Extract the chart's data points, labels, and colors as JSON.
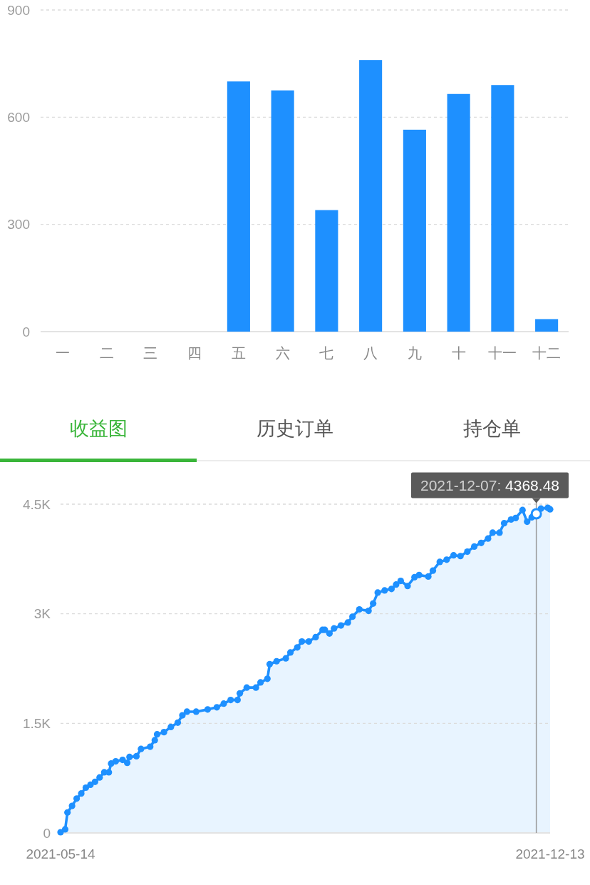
{
  "chart_data": [
    {
      "type": "bar",
      "categories": [
        "一",
        "二",
        "三",
        "四",
        "五",
        "六",
        "七",
        "八",
        "九",
        "十",
        "十一",
        "十二"
      ],
      "values": [
        null,
        null,
        null,
        null,
        700,
        675,
        340,
        760,
        565,
        665,
        690,
        35
      ],
      "color": "#1e90ff",
      "ylim": [
        0,
        900
      ],
      "yticks": [
        0,
        300,
        600,
        900
      ],
      "grid": "y"
    },
    {
      "type": "other",
      "annotations": [
        "收益图",
        "历史订单",
        "持仓单"
      ]
    },
    {
      "type": "area",
      "color": "#1e90ff",
      "marker": "circle",
      "grid": "y",
      "x": [
        "2021-05-14",
        "2021-05-16",
        "2021-05-17",
        "2021-05-19",
        "2021-05-21",
        "2021-05-23",
        "2021-05-25",
        "2021-05-27",
        "2021-05-29",
        "2021-05-31",
        "2021-06-02",
        "2021-06-04",
        "2021-06-05",
        "2021-06-07",
        "2021-06-10",
        "2021-06-12",
        "2021-06-13",
        "2021-06-16",
        "2021-06-18",
        "2021-06-22",
        "2021-06-24",
        "2021-06-25",
        "2021-06-28",
        "2021-07-01",
        "2021-07-04",
        "2021-07-06",
        "2021-07-08",
        "2021-07-12",
        "2021-07-17",
        "2021-07-21",
        "2021-07-24",
        "2021-07-27",
        "2021-07-30",
        "2021-07-31",
        "2021-08-03",
        "2021-08-07",
        "2021-08-09",
        "2021-08-12",
        "2021-08-13",
        "2021-08-16",
        "2021-08-20",
        "2021-08-22",
        "2021-08-25",
        "2021-08-27",
        "2021-08-30",
        "2021-09-02",
        "2021-09-05",
        "2021-09-06",
        "2021-09-08",
        "2021-09-10",
        "2021-09-13",
        "2021-09-16",
        "2021-09-18",
        "2021-09-21",
        "2021-09-25",
        "2021-09-27",
        "2021-09-29",
        "2021-10-02",
        "2021-10-05",
        "2021-10-07",
        "2021-10-09",
        "2021-10-12",
        "2021-10-15",
        "2021-10-17",
        "2021-10-21",
        "2021-10-23",
        "2021-10-26",
        "2021-10-29",
        "2021-11-01",
        "2021-11-04",
        "2021-11-07",
        "2021-11-10",
        "2021-11-13",
        "2021-11-16",
        "2021-11-18",
        "2021-11-21",
        "2021-11-23",
        "2021-11-26",
        "2021-11-28",
        "2021-12-01",
        "2021-12-03",
        "2021-12-05",
        "2021-12-07",
        "2021-12-09",
        "2021-12-12",
        "2021-12-13"
      ],
      "values": [
        10,
        50,
        280,
        370,
        470,
        540,
        620,
        660,
        700,
        760,
        830,
        830,
        950,
        980,
        1000,
        960,
        1040,
        1050,
        1150,
        1180,
        1270,
        1350,
        1380,
        1450,
        1510,
        1610,
        1660,
        1660,
        1690,
        1720,
        1770,
        1820,
        1820,
        1910,
        1990,
        1990,
        2060,
        2110,
        2310,
        2350,
        2390,
        2470,
        2540,
        2620,
        2620,
        2680,
        2780,
        2780,
        2730,
        2800,
        2840,
        2880,
        2960,
        3060,
        3040,
        3140,
        3290,
        3320,
        3340,
        3400,
        3450,
        3380,
        3500,
        3530,
        3510,
        3590,
        3710,
        3740,
        3800,
        3790,
        3850,
        3920,
        3970,
        4030,
        4110,
        4110,
        4240,
        4290,
        4310,
        4420,
        4260,
        4320,
        4368.48,
        4440,
        4450,
        4430
      ],
      "xlim": [
        "2021-05-14",
        "2021-12-13"
      ],
      "xticks": [
        "2021-05-14",
        "2021-12-13"
      ],
      "ylim": [
        0,
        4500
      ],
      "yticks": [
        0,
        {
          "value": 1500,
          "label": "1.5K"
        },
        {
          "value": 3000,
          "label": "3K"
        },
        {
          "value": 4500,
          "label": "4.5K"
        }
      ],
      "ref_lines": [
        {
          "axis": "x",
          "value": "2021-12-07",
          "color": "#999999"
        }
      ],
      "annotations": [
        {
          "text": "2021-12-07: 4368.48",
          "x": "2021-12-07",
          "y": 4368.48
        }
      ]
    }
  ]
}
